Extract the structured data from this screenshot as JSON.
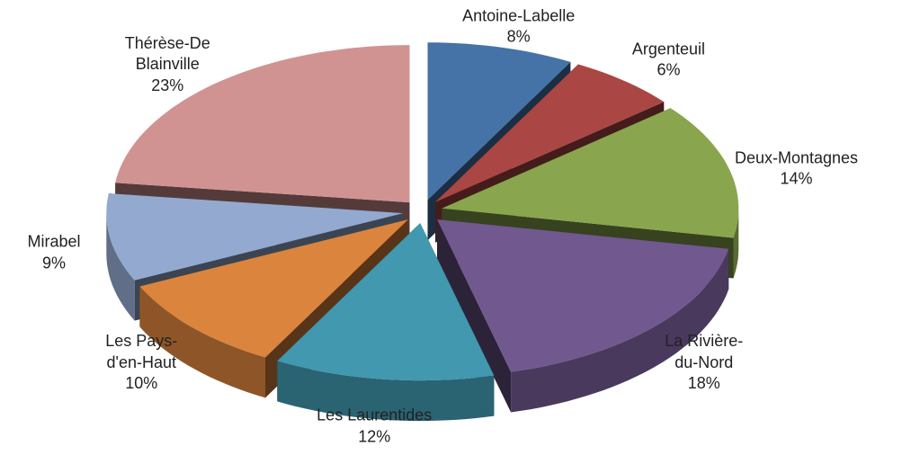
{
  "chart_data": {
    "type": "pie",
    "categories": [
      "Antoine-Labelle",
      "Argenteuil",
      "Deux-Montagnes",
      "La Rivière-du-Nord",
      "Les Laurentides",
      "Les Pays-d'en-Haut",
      "Mirabel",
      "Thérèse-De Blainville"
    ],
    "values": [
      8,
      6,
      14,
      18,
      12,
      10,
      9,
      23
    ],
    "value_labels": [
      "8%",
      "6%",
      "14%",
      "18%",
      "12%",
      "10%",
      "9%",
      "23%"
    ],
    "colors": [
      "#4572a7",
      "#aa4643",
      "#89a54e",
      "#71588f",
      "#4198af",
      "#db843d",
      "#93a9cf",
      "#d19392"
    ]
  }
}
